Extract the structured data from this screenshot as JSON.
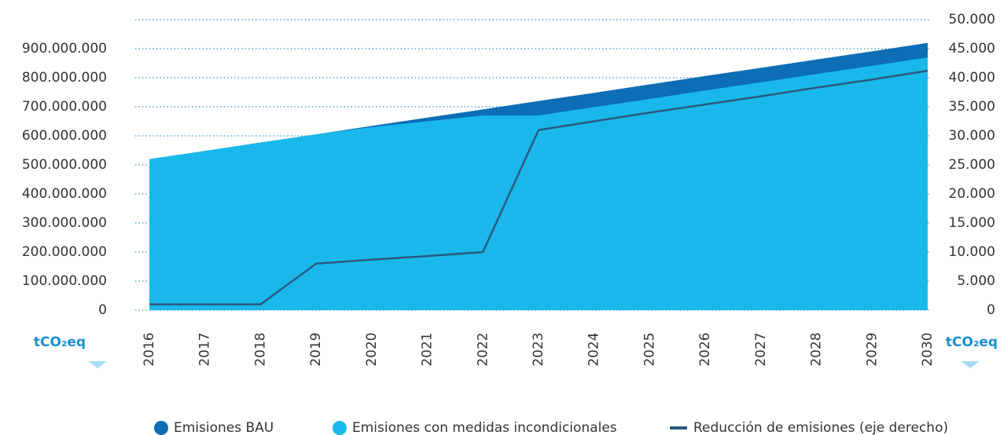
{
  "chart_data": {
    "type": "area",
    "categories": [
      "2016",
      "2017",
      "2018",
      "2019",
      "2020",
      "2021",
      "2022",
      "2023",
      "2024",
      "2025",
      "2026",
      "2027",
      "2028",
      "2029",
      "2030"
    ],
    "series": [
      {
        "name": "Emisiones BAU",
        "color": "#0d6eb5",
        "type": "area",
        "values": [
          520000000,
          548000000,
          577000000,
          605000000,
          634000000,
          663000000,
          691000000,
          720000000,
          748000000,
          777000000,
          806000000,
          834000000,
          863000000,
          891000000,
          920000000
        ]
      },
      {
        "name": "Emisiones con medidas incondicionales",
        "color": "#1ab8ea",
        "type": "area",
        "values": [
          520000000,
          548000000,
          577000000,
          605000000,
          630000000,
          650000000,
          670000000,
          670000000,
          699000000,
          727000000,
          756000000,
          784000000,
          813000000,
          841000000,
          870000000
        ]
      },
      {
        "name": "Reducción de emisiones (eje derecho)",
        "color": "#2a5a80",
        "type": "line",
        "axis": "y2",
        "values": [
          1000,
          1000,
          1000,
          8000,
          8700,
          9300,
          10000,
          31000,
          32500,
          34000,
          35400,
          36800,
          38300,
          39700,
          41200
        ]
      }
    ],
    "y_label": "tCO₂eq",
    "y2_label": "tCO₂eq",
    "ylim": [
      0,
      1000000000
    ],
    "yticks": [
      0,
      {
        "value": 100000000,
        "label": "100.000.000"
      },
      {
        "value": 200000000,
        "label": "200.000.000"
      },
      {
        "value": 300000000,
        "label": "300.000.000"
      },
      {
        "value": 400000000,
        "label": "400.000.000"
      },
      {
        "value": 500000000,
        "label": "500.000.000"
      },
      {
        "value": 600000000,
        "label": "600.000.000"
      },
      {
        "value": 700000000,
        "label": "700.000.000"
      },
      {
        "value": 800000000,
        "label": "800.000.000"
      },
      {
        "value": 900000000,
        "label": "900.000.000"
      }
    ],
    "y2lim": [
      0,
      50000
    ],
    "y2ticks": [
      0,
      {
        "value": 5000,
        "label": "5.000"
      },
      {
        "value": 10000,
        "label": "10.000"
      },
      {
        "value": 15000,
        "label": "15.000"
      },
      {
        "value": 20000,
        "label": "20.000"
      },
      {
        "value": 25000,
        "label": "25.000"
      },
      {
        "value": 30000,
        "label": "30.000"
      },
      {
        "value": 35000,
        "label": "35.000"
      },
      {
        "value": 40000,
        "label": "40.000"
      },
      {
        "value": 45000,
        "label": "45.000"
      },
      {
        "value": 50000,
        "label": "50.000"
      }
    ],
    "grid": true,
    "legend": "bottom"
  }
}
